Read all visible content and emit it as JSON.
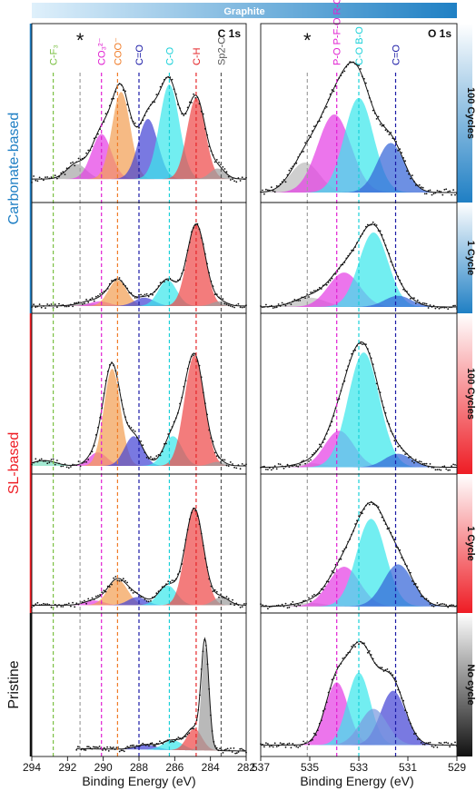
{
  "header": {
    "label": "Graphite",
    "gradient": [
      "#dff0fb",
      "#1f80c4"
    ]
  },
  "chart_data": {
    "type": "xps-stacked-panels",
    "xlabel": "Binding Energy (eV)",
    "columns": [
      {
        "id": "c1s",
        "label": "C 1s",
        "xlim": [
          294,
          282
        ],
        "ticks": [
          294,
          292,
          290,
          288,
          286,
          284,
          282
        ]
      },
      {
        "id": "o1s",
        "label": "O 1s",
        "xlim": [
          537,
          529
        ],
        "ticks": [
          537,
          535,
          533,
          531,
          529
        ]
      }
    ],
    "rows": [
      {
        "id": "carb100",
        "label": "100 Cycles",
        "group": "Carbonate-based",
        "grad_from": "#ffffff",
        "grad_to": "#1f7fc4"
      },
      {
        "id": "carb1",
        "label": "1 Cycle",
        "group": "Carbonate-based",
        "grad_from": "#ffffff",
        "grad_to": "#1f7fc4"
      },
      {
        "id": "sl100",
        "label": "100 Cycles",
        "group": "SL-based",
        "grad_from": "#ffffff",
        "grad_to": "#ee1c24"
      },
      {
        "id": "sl1",
        "label": "1 Cycle",
        "group": "SL-based",
        "grad_from": "#ffffff",
        "grad_to": "#ee1c24"
      },
      {
        "id": "pristine",
        "label": "No cycle",
        "group": "Pristine",
        "grad_from": "#ffffff",
        "grad_to": "#111111"
      }
    ],
    "groups": [
      {
        "label": "Carbonate-based",
        "color": "#1f7fc4",
        "rows": [
          0,
          1
        ]
      },
      {
        "label": "SL-based",
        "color": "#ee1c24",
        "rows": [
          2,
          3
        ]
      },
      {
        "label": "Pristine",
        "color": "#111111",
        "rows": [
          4,
          4
        ]
      }
    ],
    "ref_lines": {
      "c1s": [
        {
          "label": "C-F₃",
          "x": 292.8,
          "color": "#7bc043"
        },
        {
          "label": "*",
          "x": 291.3,
          "color": "#9e9e9e"
        },
        {
          "label": "CO₃²⁻",
          "x": 290.1,
          "color": "#e01fd1"
        },
        {
          "label": "COO⁻",
          "x": 289.2,
          "color": "#f07c28"
        },
        {
          "label": "C=O",
          "x": 288.0,
          "color": "#1a1aa6"
        },
        {
          "label": "C-O",
          "x": 286.3,
          "color": "#19d0d8"
        },
        {
          "label": "C-H",
          "x": 284.8,
          "color": "#e5262a"
        },
        {
          "label": "Sp2-C",
          "x": 283.4,
          "color": "#555555"
        }
      ],
      "o1s": [
        {
          "label": "*",
          "x": 535.1,
          "color": "#9e9e9e"
        },
        {
          "label": "P-O P-F-O R-OH",
          "x": 533.9,
          "color": "#e01fd1"
        },
        {
          "label": "C-O B-O",
          "x": 533.0,
          "color": "#19d0d8"
        },
        {
          "label": "C=O",
          "x": 531.5,
          "color": "#1a1aa6"
        }
      ]
    },
    "panels": {
      "c1s": [
        {
          "baseline": 0.12,
          "slope": 0.0,
          "peaks": [
            {
              "center": 291.5,
              "height": 0.1,
              "fwhm": 1.3,
              "color": "#a8a8a8"
            },
            {
              "center": 290.1,
              "height": 0.3,
              "fwhm": 1.3,
              "color": "#e540e5"
            },
            {
              "center": 289.0,
              "height": 0.58,
              "fwhm": 1.2,
              "color": "#f2a055"
            },
            {
              "center": 287.5,
              "height": 0.4,
              "fwhm": 1.3,
              "color": "#4545d6"
            },
            {
              "center": 286.3,
              "height": 0.63,
              "fwhm": 1.3,
              "color": "#3be8ec"
            },
            {
              "center": 284.8,
              "height": 0.54,
              "fwhm": 1.2,
              "color": "#ee4a4a"
            },
            {
              "center": 283.6,
              "height": 0.07,
              "fwhm": 1.0,
              "color": "#9e9e9e"
            }
          ]
        },
        {
          "baseline": 0.02,
          "slope": 0.0,
          "peaks": [
            {
              "center": 291.0,
              "height": 0.03,
              "fwhm": 1.4,
              "color": "#a8a8a8"
            },
            {
              "center": 290.2,
              "height": 0.05,
              "fwhm": 1.3,
              "color": "#e540e5"
            },
            {
              "center": 289.2,
              "height": 0.28,
              "fwhm": 1.2,
              "color": "#f2a055"
            },
            {
              "center": 287.7,
              "height": 0.09,
              "fwhm": 1.3,
              "color": "#4545d6"
            },
            {
              "center": 286.4,
              "height": 0.28,
              "fwhm": 1.2,
              "color": "#3be8ec"
            },
            {
              "center": 284.8,
              "height": 0.88,
              "fwhm": 1.2,
              "color": "#ee4a4a"
            },
            {
              "center": 283.5,
              "height": 0.05,
              "fwhm": 1.0,
              "color": "#9e9e9e"
            }
          ]
        },
        {
          "baseline": 0.02,
          "slope": 0.0,
          "peaks": [
            {
              "center": 293.3,
              "height": 0.04,
              "fwhm": 1.5,
              "color": "#7fe0c0"
            },
            {
              "center": 290.3,
              "height": 0.1,
              "fwhm": 1.2,
              "color": "#e540e5"
            },
            {
              "center": 289.5,
              "height": 0.72,
              "fwhm": 1.1,
              "color": "#f2a055"
            },
            {
              "center": 288.3,
              "height": 0.22,
              "fwhm": 1.2,
              "color": "#4545d6"
            },
            {
              "center": 286.1,
              "height": 0.22,
              "fwhm": 1.2,
              "color": "#3be8ec"
            },
            {
              "center": 284.9,
              "height": 0.82,
              "fwhm": 1.3,
              "color": "#ee4a4a"
            },
            {
              "center": 283.6,
              "height": 0.03,
              "fwhm": 1.0,
              "color": "#9e9e9e"
            }
          ]
        },
        {
          "baseline": 0.02,
          "slope": 0.0,
          "peaks": [
            {
              "center": 290.5,
              "height": 0.04,
              "fwhm": 1.3,
              "color": "#e540e5"
            },
            {
              "center": 289.2,
              "height": 0.22,
              "fwhm": 1.3,
              "color": "#f2a055"
            },
            {
              "center": 288.1,
              "height": 0.07,
              "fwhm": 1.2,
              "color": "#4545d6"
            },
            {
              "center": 286.4,
              "height": 0.17,
              "fwhm": 1.2,
              "color": "#3be8ec"
            },
            {
              "center": 284.9,
              "height": 0.83,
              "fwhm": 1.2,
              "color": "#ee4a4a"
            },
            {
              "center": 283.4,
              "height": 0.07,
              "fwhm": 1.0,
              "color": "#9e9e9e"
            }
          ]
        },
        {
          "baseline": 0.0,
          "slope": 0.02,
          "xmin_data": 291.5,
          "peaks": [
            {
              "center": 287.6,
              "height": 0.04,
              "fwhm": 1.4,
              "color": "#4545d6"
            },
            {
              "center": 286.1,
              "height": 0.08,
              "fwhm": 1.3,
              "color": "#3be8ec"
            },
            {
              "center": 284.9,
              "height": 0.18,
              "fwhm": 1.0,
              "color": "#ee4a4a"
            },
            {
              "center": 284.3,
              "height": 0.86,
              "fwhm": 0.5,
              "color": "#9e9e9e"
            }
          ]
        }
      ],
      "o1s": [
        {
          "baseline": 0.03,
          "slope": 0.0,
          "peaks": [
            {
              "center": 535.2,
              "height": 0.2,
              "fwhm": 1.4,
              "color": "#bdbdbd"
            },
            {
              "center": 534.0,
              "height": 0.52,
              "fwhm": 1.6,
              "color": "#e540e5"
            },
            {
              "center": 533.0,
              "height": 0.63,
              "fwhm": 1.4,
              "color": "#3be8ec"
            },
            {
              "center": 531.7,
              "height": 0.33,
              "fwhm": 1.3,
              "color": "#3565d8"
            }
          ]
        },
        {
          "baseline": 0.01,
          "slope": 0.0,
          "peaks": [
            {
              "center": 535.0,
              "height": 0.1,
              "fwhm": 1.5,
              "color": "#bdbdbd"
            },
            {
              "center": 533.6,
              "height": 0.37,
              "fwhm": 1.5,
              "color": "#e540e5"
            },
            {
              "center": 532.4,
              "height": 0.8,
              "fwhm": 1.4,
              "color": "#3be8ec"
            },
            {
              "center": 531.4,
              "height": 0.12,
              "fwhm": 1.3,
              "color": "#3565d8"
            }
          ]
        },
        {
          "baseline": 0.01,
          "slope": 0.0,
          "peaks": [
            {
              "center": 535.0,
              "height": 0.03,
              "fwhm": 1.4,
              "color": "#bdbdbd"
            },
            {
              "center": 533.8,
              "height": 0.27,
              "fwhm": 1.4,
              "color": "#e540e5"
            },
            {
              "center": 532.8,
              "height": 0.85,
              "fwhm": 1.5,
              "color": "#3be8ec"
            },
            {
              "center": 531.4,
              "height": 0.1,
              "fwhm": 1.3,
              "color": "#3565d8"
            }
          ]
        },
        {
          "baseline": 0.01,
          "slope": 0.0,
          "peaks": [
            {
              "center": 535.0,
              "height": 0.03,
              "fwhm": 1.4,
              "color": "#bdbdbd"
            },
            {
              "center": 533.6,
              "height": 0.34,
              "fwhm": 1.5,
              "color": "#e540e5"
            },
            {
              "center": 532.5,
              "height": 0.75,
              "fwhm": 1.4,
              "color": "#3be8ec"
            },
            {
              "center": 531.4,
              "height": 0.36,
              "fwhm": 1.4,
              "color": "#3565d8"
            }
          ]
        },
        {
          "baseline": 0.05,
          "slope": 0.0,
          "peaks": [
            {
              "center": 533.9,
              "height": 0.52,
              "fwhm": 1.1,
              "color": "#e540e5"
            },
            {
              "center": 533.0,
              "height": 0.6,
              "fwhm": 1.1,
              "color": "#3be8ec"
            },
            {
              "center": 531.6,
              "height": 0.45,
              "fwhm": 1.2,
              "color": "#4545d6"
            },
            {
              "center": 532.4,
              "height": 0.3,
              "fwhm": 1.3,
              "color": "#7a9ae0"
            }
          ]
        }
      ]
    }
  }
}
